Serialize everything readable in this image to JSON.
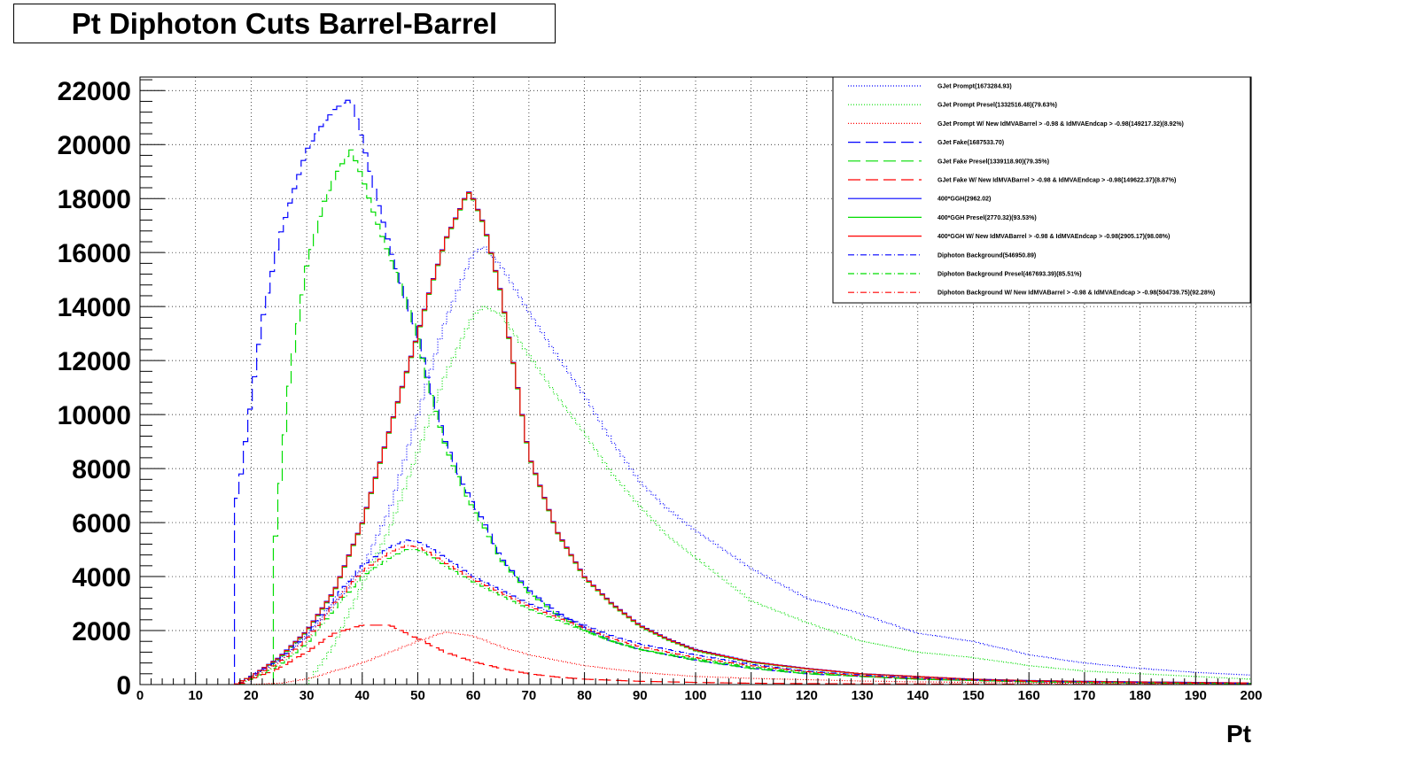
{
  "title": "Pt Diphoton Cuts Barrel-Barrel",
  "chart_data": {
    "type": "line",
    "xlabel": "Pt",
    "ylabel": "",
    "xlim": [
      0,
      200
    ],
    "ylim": [
      0,
      22500
    ],
    "grid": true,
    "legend_position": "top-right",
    "x_ticks": [
      "0",
      "10",
      "20",
      "30",
      "40",
      "50",
      "60",
      "70",
      "80",
      "90",
      "100",
      "110",
      "120",
      "130",
      "140",
      "150",
      "160",
      "170",
      "180",
      "190",
      "200"
    ],
    "y_ticks": [
      "0",
      "2000",
      "4000",
      "6000",
      "8000",
      "10000",
      "12000",
      "14000",
      "16000",
      "18000",
      "20000",
      "22000"
    ],
    "series": [
      {
        "name": "GJet Prompt(1673284.93)",
        "color": "#0000ff",
        "dash": "dotted",
        "x": [
          20,
          25,
          30,
          35,
          40,
          45,
          50,
          55,
          60,
          62,
          65,
          70,
          75,
          80,
          85,
          90,
          95,
          100,
          110,
          120,
          130,
          140,
          150,
          160,
          170,
          180,
          190,
          200
        ],
        "y": [
          300,
          900,
          1800,
          3000,
          4300,
          6500,
          10000,
          13500,
          16000,
          16200,
          15500,
          13800,
          12200,
          10700,
          9000,
          7500,
          6500,
          5700,
          4300,
          3200,
          2600,
          1900,
          1600,
          1100,
          800,
          600,
          450,
          350
        ]
      },
      {
        "name": "GJet Prompt Presel(1332516.48)(79.63%)",
        "color": "#00dd00",
        "dash": "dotted",
        "x": [
          20,
          25,
          30,
          35,
          40,
          45,
          50,
          55,
          60,
          62,
          65,
          70,
          75,
          80,
          85,
          90,
          95,
          100,
          110,
          120,
          130,
          140,
          150,
          160,
          170,
          180,
          190,
          200
        ],
        "y": [
          0,
          0,
          0,
          1500,
          3700,
          5800,
          8600,
          11500,
          13700,
          14000,
          13700,
          12200,
          10700,
          9300,
          7800,
          6600,
          5500,
          4700,
          3100,
          2300,
          1600,
          1200,
          1000,
          700,
          500,
          400,
          300,
          200
        ]
      },
      {
        "name": "GJet Prompt W/ New IdMVABarrel > -0.98 & IdMVAEndcap > -0.98(149217.32)(8.92%)",
        "color": "#ff0000",
        "dash": "dotted",
        "x": [
          20,
          25,
          30,
          35,
          40,
          45,
          50,
          55,
          60,
          65,
          70,
          80,
          90,
          100,
          110,
          120,
          130,
          140,
          150,
          160,
          170,
          180,
          190,
          200
        ],
        "y": [
          0,
          50,
          200,
          500,
          800,
          1200,
          1600,
          1950,
          1800,
          1400,
          1100,
          700,
          450,
          300,
          230,
          180,
          130,
          100,
          80,
          60,
          50,
          40,
          30,
          25
        ]
      },
      {
        "name": "GJet Fake(1687533.70)",
        "color": "#0000ff",
        "dash": "long-dash",
        "x": [
          17,
          18,
          20,
          22,
          25,
          28,
          30,
          33,
          35,
          37,
          38,
          40,
          42,
          45,
          48,
          50,
          52,
          55,
          58,
          60,
          62,
          65,
          70,
          75,
          80,
          85,
          90,
          100,
          110,
          120,
          130,
          140,
          150,
          160,
          170,
          180,
          190,
          200
        ],
        "y": [
          6500,
          7500,
          10500,
          13500,
          16500,
          18500,
          19800,
          20800,
          21300,
          21600,
          21700,
          20200,
          18500,
          16200,
          14200,
          13000,
          11200,
          9000,
          7500,
          6700,
          6000,
          4700,
          3500,
          2700,
          2100,
          1600,
          1300,
          900,
          600,
          400,
          300,
          200,
          150,
          100,
          80,
          60,
          50,
          40
        ]
      },
      {
        "name": "GJet Fake Presel(1339118.90)(79.35%)",
        "color": "#00dd00",
        "dash": "long-dash",
        "x": [
          24,
          25,
          27,
          30,
          33,
          35,
          37,
          38,
          40,
          42,
          45,
          48,
          50,
          52,
          55,
          58,
          60,
          62,
          65,
          70,
          75,
          80,
          85,
          90,
          100,
          110,
          120,
          130,
          140,
          150,
          160,
          170,
          180,
          190,
          200
        ],
        "y": [
          4500,
          7000,
          11500,
          15500,
          17800,
          18800,
          19500,
          19800,
          18800,
          17500,
          15800,
          14200,
          12800,
          11000,
          8800,
          7300,
          6500,
          5800,
          4600,
          3400,
          2600,
          2000,
          1600,
          1300,
          900,
          600,
          400,
          300,
          200,
          150,
          100,
          80,
          60,
          50,
          40
        ]
      },
      {
        "name": "GJet Fake W/ New IdMVABarrel > -0.98 & IdMVAEndcap > -0.98(149622.37)(8.87%)",
        "color": "#ff0000",
        "dash": "long-dash",
        "x": [
          17,
          20,
          25,
          30,
          35,
          40,
          45,
          50,
          55,
          60,
          65,
          70,
          75,
          80,
          90,
          100,
          110,
          120,
          130,
          140,
          150,
          160,
          170,
          180,
          190,
          200
        ],
        "y": [
          0,
          200,
          600,
          1200,
          1900,
          2200,
          2200,
          1700,
          1200,
          850,
          600,
          400,
          280,
          200,
          120,
          80,
          50,
          35,
          25,
          20,
          15,
          10,
          10,
          8,
          6,
          5
        ]
      },
      {
        "name": "400*GGH(2962.02)",
        "color": "#0000ff",
        "dash": "solid",
        "x": [
          18,
          20,
          25,
          30,
          35,
          40,
          45,
          50,
          52,
          55,
          58,
          59,
          60,
          62,
          65,
          68,
          70,
          75,
          80,
          85,
          90,
          95,
          100,
          110,
          120,
          130,
          140,
          150,
          160,
          170,
          180,
          190,
          200
        ],
        "y": [
          100,
          300,
          1000,
          2000,
          3500,
          6000,
          9500,
          13000,
          14500,
          16500,
          17800,
          18300,
          18000,
          17000,
          14500,
          11000,
          8500,
          5700,
          4000,
          3000,
          2200,
          1700,
          1300,
          850,
          600,
          400,
          300,
          200,
          150,
          120,
          100,
          80,
          60
        ]
      },
      {
        "name": "400*GGH Presel(2770.32)(93.53%)",
        "color": "#00dd00",
        "dash": "solid",
        "x": [
          18,
          20,
          25,
          30,
          35,
          40,
          45,
          50,
          52,
          55,
          58,
          59,
          60,
          62,
          65,
          68,
          70,
          75,
          80,
          85,
          90,
          95,
          100,
          110,
          120,
          130,
          140,
          150,
          160,
          170,
          180,
          190,
          200
        ],
        "y": [
          100,
          300,
          950,
          1950,
          3450,
          5950,
          9450,
          12950,
          14450,
          16450,
          17750,
          18250,
          17950,
          16950,
          14450,
          10950,
          8450,
          5650,
          3950,
          2950,
          2150,
          1650,
          1250,
          820,
          580,
          390,
          290,
          190,
          140,
          110,
          90,
          70,
          55
        ]
      },
      {
        "name": "400*GGH W/ New IdMVABarrel > -0.98 & IdMVAEndcap > -0.98(2905.17)(98.08%)",
        "color": "#ff0000",
        "dash": "solid",
        "x": [
          18,
          20,
          25,
          30,
          35,
          40,
          45,
          50,
          52,
          55,
          58,
          59,
          60,
          62,
          65,
          68,
          70,
          75,
          80,
          85,
          90,
          95,
          100,
          110,
          120,
          130,
          140,
          150,
          160,
          170,
          180,
          190,
          200
        ],
        "y": [
          100,
          300,
          980,
          1980,
          3480,
          5980,
          9480,
          12980,
          14480,
          16480,
          17780,
          18280,
          17980,
          16980,
          14480,
          10980,
          8480,
          5680,
          3980,
          2980,
          2180,
          1680,
          1280,
          840,
          590,
          395,
          295,
          195,
          145,
          115,
          95,
          75,
          58
        ]
      },
      {
        "name": "Diphoton Background(546950.89)",
        "color": "#0000ff",
        "dash": "dash-dot",
        "x": [
          18,
          20,
          25,
          30,
          35,
          40,
          45,
          48,
          50,
          52,
          55,
          60,
          65,
          70,
          75,
          80,
          85,
          90,
          100,
          110,
          120,
          130,
          140,
          150,
          160,
          170,
          180,
          190,
          200
        ],
        "y": [
          0,
          300,
          900,
          1800,
          3200,
          4400,
          5100,
          5350,
          5300,
          5100,
          4700,
          4000,
          3500,
          3000,
          2600,
          2200,
          1800,
          1500,
          1100,
          750,
          500,
          350,
          250,
          180,
          130,
          100,
          80,
          60,
          40
        ]
      },
      {
        "name": "Diphoton Background Presel(467693.39)(85.51%)",
        "color": "#00dd00",
        "dash": "dash-dot",
        "x": [
          18,
          20,
          25,
          30,
          35,
          40,
          45,
          48,
          50,
          52,
          55,
          60,
          65,
          70,
          75,
          80,
          85,
          90,
          100,
          110,
          120,
          130,
          140,
          150,
          160,
          170,
          180,
          190,
          200
        ],
        "y": [
          0,
          200,
          700,
          1500,
          2800,
          4000,
          4700,
          5000,
          5000,
          4800,
          4400,
          3800,
          3300,
          2800,
          2400,
          2000,
          1600,
          1300,
          950,
          650,
          450,
          300,
          200,
          150,
          110,
          80,
          60,
          45,
          30
        ]
      },
      {
        "name": "Diphoton Background W/ New IdMVABarrel > -0.98 & IdMVAEndcap > -0.98(504739.75)(92.28%)",
        "color": "#ff0000",
        "dash": "dash-dot",
        "x": [
          18,
          20,
          25,
          30,
          35,
          40,
          45,
          48,
          50,
          52,
          55,
          60,
          65,
          70,
          75,
          80,
          85,
          90,
          100,
          110,
          120,
          130,
          140,
          150,
          160,
          170,
          180,
          190,
          200
        ],
        "y": [
          0,
          250,
          800,
          1650,
          3000,
          4200,
          4900,
          5150,
          5100,
          4900,
          4500,
          3900,
          3400,
          2900,
          2500,
          2100,
          1700,
          1400,
          1000,
          700,
          480,
          320,
          230,
          160,
          120,
          90,
          70,
          50,
          35
        ]
      }
    ]
  }
}
